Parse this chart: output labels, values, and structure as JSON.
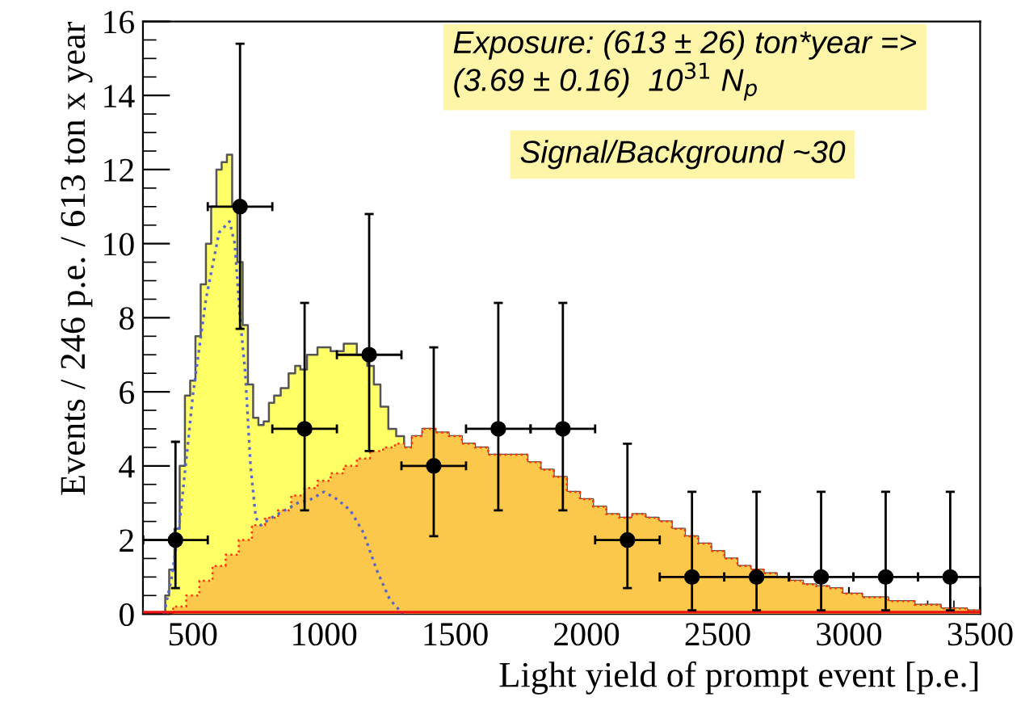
{
  "chart_data": {
    "type": "area",
    "xlabel": "Light yield of prompt event [p.e.]",
    "ylabel": "Events / 246 p.e. / 613 ton x year",
    "annotations": [
      "Exposure: (613 ± 26) ton*year =>\n(3.69 ± 0.16)  10$^{31}$ N$_{p}$",
      "Signal/Background ~30"
    ],
    "xlim": [
      310,
      3500
    ],
    "xticks": [
      500,
      1000,
      1500,
      2000,
      2500,
      3000,
      3500
    ],
    "ylim": [
      0,
      16
    ],
    "yticks": [
      0,
      2,
      4,
      6,
      8,
      10,
      12,
      14,
      16
    ],
    "grid": false,
    "legend": false,
    "series": [
      {
        "color": "#ffff66",
        "x": [
          390,
          400,
          420,
          440,
          460,
          480,
          500,
          520,
          540,
          560,
          580,
          600,
          620,
          640,
          660,
          680,
          700,
          720,
          740,
          760,
          780,
          800,
          820,
          850,
          880,
          900,
          920,
          950,
          1000,
          1050,
          1100,
          1150,
          1180,
          1200,
          1230,
          1260,
          1290,
          1320,
          1350,
          1400,
          1450,
          1500,
          1550,
          1600,
          1650,
          1700,
          1750,
          1800,
          1850,
          1900,
          1950,
          2000,
          2050,
          2100,
          2150,
          2200,
          2250,
          2300,
          2350,
          2400,
          2450,
          2500,
          2550,
          2600,
          2650,
          2700,
          2750,
          2800,
          2850,
          2900,
          2950,
          3000,
          3100,
          3200,
          3300,
          3400,
          3500
        ],
        "values": [
          0,
          0.5,
          1.2,
          2.3,
          4,
          5.9,
          6.3,
          7.5,
          8.9,
          10,
          11,
          12,
          12.2,
          12.4,
          11,
          9.5,
          7.8,
          6.2,
          5.3,
          5.1,
          5.2,
          5.7,
          5.9,
          6.1,
          6.5,
          6.7,
          6.6,
          7.0,
          7.2,
          7.1,
          7.3,
          7.0,
          6.7,
          6.2,
          5.6,
          5.0,
          4.8,
          4.5,
          4.8,
          5.0,
          4.9,
          4.8,
          4.6,
          4.5,
          4.3,
          4.3,
          4.3,
          4.1,
          3.9,
          3.7,
          3.3,
          3.1,
          2.9,
          2.7,
          2.6,
          2.7,
          2.6,
          2.5,
          2.3,
          2.1,
          1.9,
          1.7,
          1.5,
          1.3,
          1.2,
          1.1,
          1.0,
          0.9,
          0.8,
          0.75,
          0.7,
          0.55,
          0.45,
          0.35,
          0.25,
          0.15,
          0.1
        ]
      },
      {
        "color": "#fcc84c",
        "x": [
          400,
          450,
          500,
          550,
          600,
          650,
          700,
          750,
          800,
          850,
          900,
          950,
          1000,
          1050,
          1100,
          1150,
          1200,
          1250,
          1290,
          1320,
          1350,
          1400,
          1450,
          1500,
          1550,
          1600,
          1650,
          1700,
          1750,
          1800,
          1850,
          1900,
          1950,
          2000,
          2050,
          2100,
          2150,
          2200,
          2250,
          2300,
          2350,
          2400,
          2450,
          2500,
          2550,
          2600,
          2650,
          2700,
          2750,
          2800,
          2850,
          2900,
          2950,
          3000,
          3100,
          3200,
          3300,
          3400,
          3500
        ],
        "values": [
          0,
          0.2,
          0.5,
          0.9,
          1.3,
          1.6,
          2.0,
          2.4,
          2.6,
          2.8,
          3.2,
          3.4,
          3.6,
          3.8,
          4.0,
          4.2,
          4.4,
          4.5,
          4.6,
          4.5,
          4.8,
          5.0,
          4.9,
          4.8,
          4.6,
          4.5,
          4.3,
          4.3,
          4.3,
          4.1,
          3.9,
          3.7,
          3.3,
          3.1,
          2.9,
          2.7,
          2.6,
          2.7,
          2.6,
          2.5,
          2.3,
          2.1,
          1.9,
          1.7,
          1.5,
          1.3,
          1.2,
          1.1,
          1.0,
          0.9,
          0.8,
          0.75,
          0.7,
          0.55,
          0.45,
          0.35,
          0.25,
          0.15,
          0.1
        ],
        "line_style": "dotted"
      },
      {
        "type": "line",
        "color": "#5566cc",
        "line_style": "dotted",
        "x": [
          390,
          420,
          450,
          480,
          500,
          550,
          600,
          640,
          660,
          680,
          700,
          720,
          740,
          760,
          800,
          850,
          900,
          950,
          1000,
          1050,
          1100,
          1150,
          1200,
          1250,
          1300
        ],
        "values": [
          0,
          1,
          2.5,
          4.5,
          5.9,
          8.5,
          10.3,
          10.6,
          10,
          8,
          6.5,
          4,
          2.6,
          2.4,
          2.6,
          2.8,
          3.0,
          3.1,
          3.3,
          3.1,
          2.8,
          2.2,
          1.2,
          0.4,
          0
        ]
      },
      {
        "type": "line",
        "color": "#ee1111",
        "line_style": "solid",
        "x": [
          310,
          3500
        ],
        "values": [
          0.05,
          0.05
        ]
      },
      {
        "type": "scatter",
        "color": "#000000",
        "marker": "circle",
        "x": [
          434,
          680,
          926,
          1172,
          1418,
          1664,
          1910,
          2156,
          2402,
          2648,
          2894,
          3140,
          3386
        ],
        "values": [
          2,
          11,
          5,
          7,
          4,
          5,
          5,
          2,
          1,
          1,
          1,
          1,
          1
        ],
        "errors": [
          [
            0.7,
            4.65
          ],
          [
            7.7,
            15.4
          ],
          [
            2.8,
            8.4
          ],
          [
            4.4,
            10.8
          ],
          [
            2.1,
            7.2
          ],
          [
            2.8,
            8.4
          ],
          [
            2.8,
            8.4
          ],
          [
            0.7,
            4.6
          ],
          [
            0.1,
            3.3
          ],
          [
            0.1,
            3.3
          ],
          [
            0.1,
            3.3
          ],
          [
            0.1,
            3.3
          ],
          [
            0.1,
            3.3
          ]
        ],
        "xerrors": [
          123,
          123,
          123,
          123,
          123,
          123,
          123,
          123,
          123,
          123,
          123,
          123,
          123
        ]
      }
    ]
  }
}
